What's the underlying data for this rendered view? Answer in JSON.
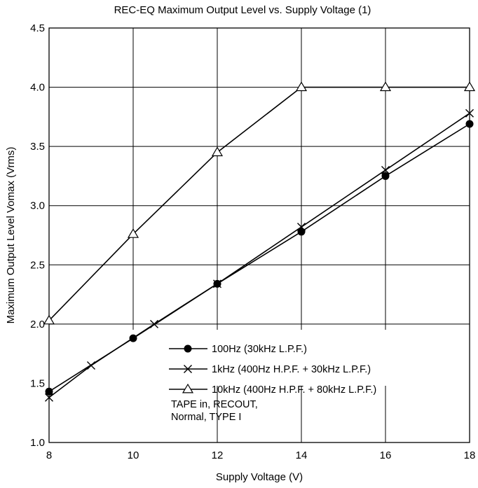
{
  "chart_data": {
    "type": "line",
    "title": "REC-EQ Maximum Output Level vs. Supply Voltage (1)",
    "xlabel": "Supply Voltage  (V)",
    "ylabel": "Maximum Output Level  Vomax  (Vrms)",
    "xlim": [
      8,
      18
    ],
    "ylim": [
      1.0,
      4.5
    ],
    "x_ticks": [
      "8",
      "10",
      "12",
      "14",
      "16",
      "18"
    ],
    "y_ticks": [
      "1.0",
      "1.5",
      "2.0",
      "2.5",
      "3.0",
      "3.5",
      "4.0",
      "4.5"
    ],
    "grid": true,
    "legend_position": "bottom-right",
    "series": [
      {
        "name": "100Hz (30kHz L.P.F.)",
        "marker": "filled-circle",
        "x": [
          8,
          10,
          12,
          14,
          16,
          18
        ],
        "y": [
          1.43,
          1.88,
          2.34,
          2.78,
          3.25,
          3.69
        ]
      },
      {
        "name": "1kHz (400Hz H.P.F. + 30kHz L.P.F.)",
        "marker": "cross",
        "x": [
          8,
          9,
          10.5,
          12,
          14,
          16,
          18
        ],
        "y": [
          1.38,
          1.65,
          2.0,
          2.34,
          2.82,
          3.3,
          3.78
        ]
      },
      {
        "name": "10kHz (400Hz H.P.F. + 80kHz L.P.F.)",
        "marker": "open-triangle",
        "x": [
          8,
          10,
          12,
          14,
          16,
          18
        ],
        "y": [
          2.03,
          2.76,
          3.45,
          4.0,
          4.0,
          4.0
        ]
      }
    ],
    "annotation": [
      "TAPE in, RECOUT,",
      "Normal, TYPE I"
    ]
  }
}
